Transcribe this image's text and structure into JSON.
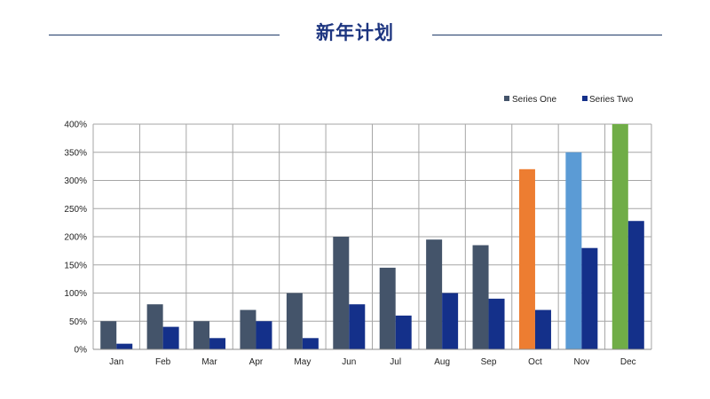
{
  "title": "新年计划",
  "colors": {
    "series_one": "#44546a",
    "series_two": "#14308a",
    "grid": "#a6a6a6",
    "highlight_oct": "#ed7d31",
    "highlight_nov": "#5b9bd5",
    "highlight_dec": "#70ad47",
    "title": "#1d3580"
  },
  "chart_data": {
    "type": "bar",
    "title": "",
    "xlabel": "",
    "ylabel": "",
    "categories": [
      "Jan",
      "Feb",
      "Mar",
      "Apr",
      "May",
      "Jun",
      "Jul",
      "Aug",
      "Sep",
      "Oct",
      "Nov",
      "Dec"
    ],
    "series": [
      {
        "name": "Series One",
        "values": [
          50,
          80,
          50,
          70,
          100,
          200,
          145,
          195,
          185,
          320,
          350,
          400
        ],
        "point_colors": {
          "9": "#ed7d31",
          "10": "#5b9bd5",
          "11": "#70ad47"
        }
      },
      {
        "name": "Series Two",
        "values": [
          10,
          40,
          20,
          50,
          20,
          80,
          60,
          100,
          90,
          70,
          180,
          228
        ]
      }
    ],
    "ylim": [
      0,
      400
    ],
    "yticks": [
      0,
      50,
      100,
      150,
      200,
      250,
      300,
      350,
      400
    ],
    "ytick_labels": [
      "0%",
      "50%",
      "100%",
      "150%",
      "200%",
      "250%",
      "300%",
      "350%",
      "400%"
    ],
    "grid": true,
    "legend_position": "top-right"
  }
}
